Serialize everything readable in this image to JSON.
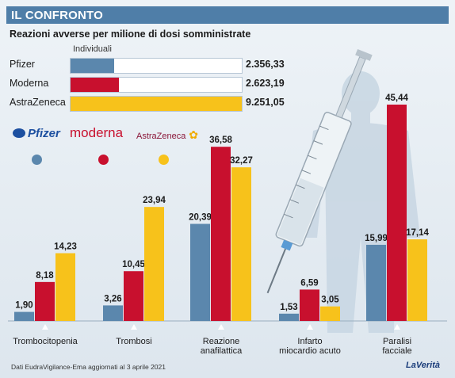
{
  "header": {
    "title": "IL CONFRONTO"
  },
  "subtitle": "Reazioni avverse per milione di dosi somministrate",
  "summary": {
    "label": "Individuali",
    "rows": [
      {
        "name": "Pfizer",
        "value": 2356.33,
        "value_label": "2.356,33",
        "color": "#5b87ad"
      },
      {
        "name": "Moderna",
        "value": 2623.19,
        "value_label": "2.623,19",
        "color": "#c8102e"
      },
      {
        "name": "AstraZeneca",
        "value": 9251.05,
        "value_label": "9.251,05",
        "color": "#f7c21b"
      }
    ]
  },
  "logos": {
    "pfizer": "Pfizer",
    "moderna": "moderna",
    "astrazeneca": "AstraZeneca"
  },
  "colors": {
    "pfizer": "#5b87ad",
    "moderna": "#c8102e",
    "astrazeneca": "#f7c21b"
  },
  "chart_data": {
    "type": "bar",
    "categories": [
      "Trombocitopenia",
      "Trombosi",
      "Reazione anafilattica",
      "Infarto miocardio acuto",
      "Paralisi facciale"
    ],
    "category_labels": [
      [
        "Trombocitopenia"
      ],
      [
        "Trombosi"
      ],
      [
        "Reazione",
        "anafilattica"
      ],
      [
        "Infarto",
        "miocardio acuto"
      ],
      [
        "Paralisi",
        "facciale"
      ]
    ],
    "series": [
      {
        "name": "Pfizer",
        "values": [
          1.9,
          3.26,
          20.39,
          1.53,
          15.99
        ],
        "labels": [
          "1,90",
          "3,26",
          "20,39",
          "1,53",
          "15,99"
        ]
      },
      {
        "name": "Moderna",
        "values": [
          8.18,
          10.45,
          36.58,
          6.59,
          45.44
        ],
        "labels": [
          "8,18",
          "10,45",
          "36,58",
          "6,59",
          "45,44"
        ]
      },
      {
        "name": "AstraZeneca",
        "values": [
          14.23,
          23.94,
          32.27,
          3.05,
          17.14
        ],
        "labels": [
          "14,23",
          "23,94",
          "32,27",
          "3,05",
          "17,14"
        ]
      }
    ],
    "ylim": [
      0,
      45.44
    ],
    "grid": false
  },
  "footer": {
    "source": "Dati EudraVigilance-Ema aggiornati al 3 aprile 2021",
    "brand": "LaVerità"
  }
}
